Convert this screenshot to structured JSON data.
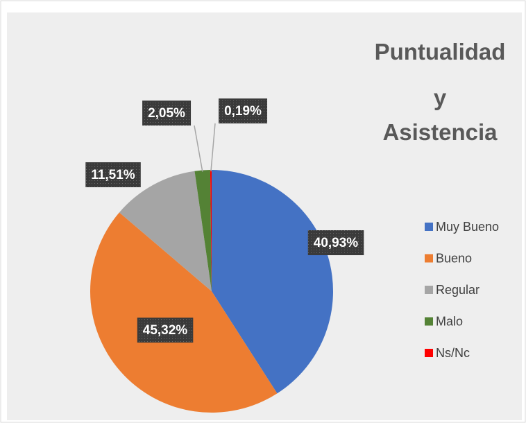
{
  "chart_data": {
    "type": "pie",
    "title": "Puntualidad y Asistencia",
    "categories": [
      "Muy Bueno",
      "Bueno",
      "Regular",
      "Malo",
      "Ns/Nc"
    ],
    "values": [
      40.93,
      45.32,
      11.51,
      2.05,
      0.19
    ],
    "value_labels": [
      "40,93%",
      "45,32%",
      "11,51%",
      "2,05%",
      "0,19%"
    ],
    "colors": [
      "#4472c4",
      "#ed7d31",
      "#a5a5a5",
      "#548235",
      "#ff0000"
    ],
    "legend": "right"
  }
}
